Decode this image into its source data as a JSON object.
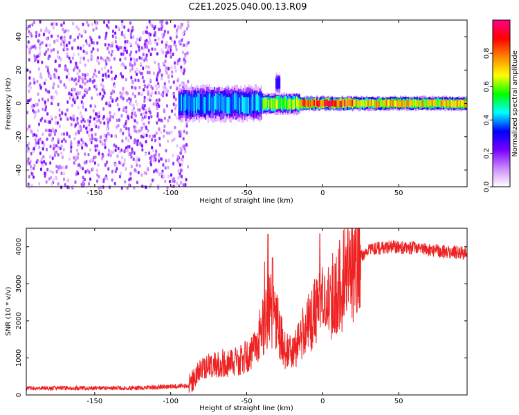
{
  "title": "C2E1.2025.040.00.13.R09",
  "chart_data": [
    {
      "type": "heatmap",
      "xlabel": "Height of straight line (km)",
      "ylabel": "Frequency (Hz)",
      "xlim": [
        -195,
        95
      ],
      "ylim": [
        -50,
        50
      ],
      "x_ticks": [
        -150,
        -100,
        -50,
        0,
        50
      ],
      "y_ticks": [
        -40,
        -20,
        0,
        20,
        40
      ],
      "colorbar": {
        "label": "Normalized spectral amplitude",
        "range": [
          0,
          1
        ],
        "ticks": [
          0.0,
          0.2,
          0.4,
          0.6,
          0.8
        ],
        "colors": [
          "#ffffff",
          "#cc88ff",
          "#7700ff",
          "#0000ff",
          "#00ffff",
          "#00ff00",
          "#ffff00",
          "#ff8800",
          "#ff0000",
          "#ff0088"
        ]
      },
      "regions": [
        {
          "x_range": [
            -195,
            -88
          ],
          "freq_range": [
            -50,
            50
          ],
          "pattern": "broadband noise",
          "amplitude": 0.1
        },
        {
          "x_range": [
            -95,
            -40
          ],
          "freq_center": 0,
          "freq_halfwidth": 5,
          "amplitude": 0.4
        },
        {
          "x_range": [
            -40,
            -15
          ],
          "freq_center": 0,
          "freq_halfwidth": 3,
          "amplitude": 0.6
        },
        {
          "x_range": [
            -15,
            20
          ],
          "freq_center": 0,
          "freq_halfwidth": 2,
          "amplitude": 0.85
        },
        {
          "x_range": [
            20,
            95
          ],
          "freq_center": 0,
          "freq_halfwidth": 2,
          "amplitude": 0.7
        },
        {
          "x_range": [
            -31,
            -28
          ],
          "freq_center": 12,
          "freq_halfwidth": 3,
          "amplitude": 0.3
        }
      ]
    },
    {
      "type": "line",
      "xlabel": "Height of straight line (km)",
      "ylabel": "SNR (10 * v/v)",
      "xlim": [
        -195,
        95
      ],
      "ylim": [
        0,
        4500
      ],
      "x_ticks": [
        -150,
        -100,
        -50,
        0,
        50
      ],
      "y_ticks": [
        0,
        1000,
        2000,
        3000,
        4000
      ],
      "series_color": "#ee2222",
      "profile_x": [
        -195,
        -120,
        -88,
        -80,
        -70,
        -55,
        -45,
        -40,
        -35,
        -30,
        -25,
        -20,
        -15,
        -10,
        -5,
        0,
        5,
        10,
        15,
        20,
        25,
        30,
        35,
        40,
        50,
        60,
        70,
        80,
        95
      ],
      "profile_y": [
        180,
        190,
        250,
        700,
        850,
        900,
        1200,
        1800,
        2400,
        1900,
        1200,
        1100,
        1500,
        1900,
        2200,
        2400,
        2600,
        2900,
        3200,
        3500,
        3750,
        3900,
        3950,
        3980,
        3990,
        3970,
        3920,
        3880,
        3830
      ],
      "peaks": [
        {
          "x": -38,
          "y": 3600
        },
        {
          "x": -36,
          "y": 4350
        },
        {
          "x": -33,
          "y": 3700
        },
        {
          "x": -2,
          "y": 4350
        }
      ]
    }
  ]
}
